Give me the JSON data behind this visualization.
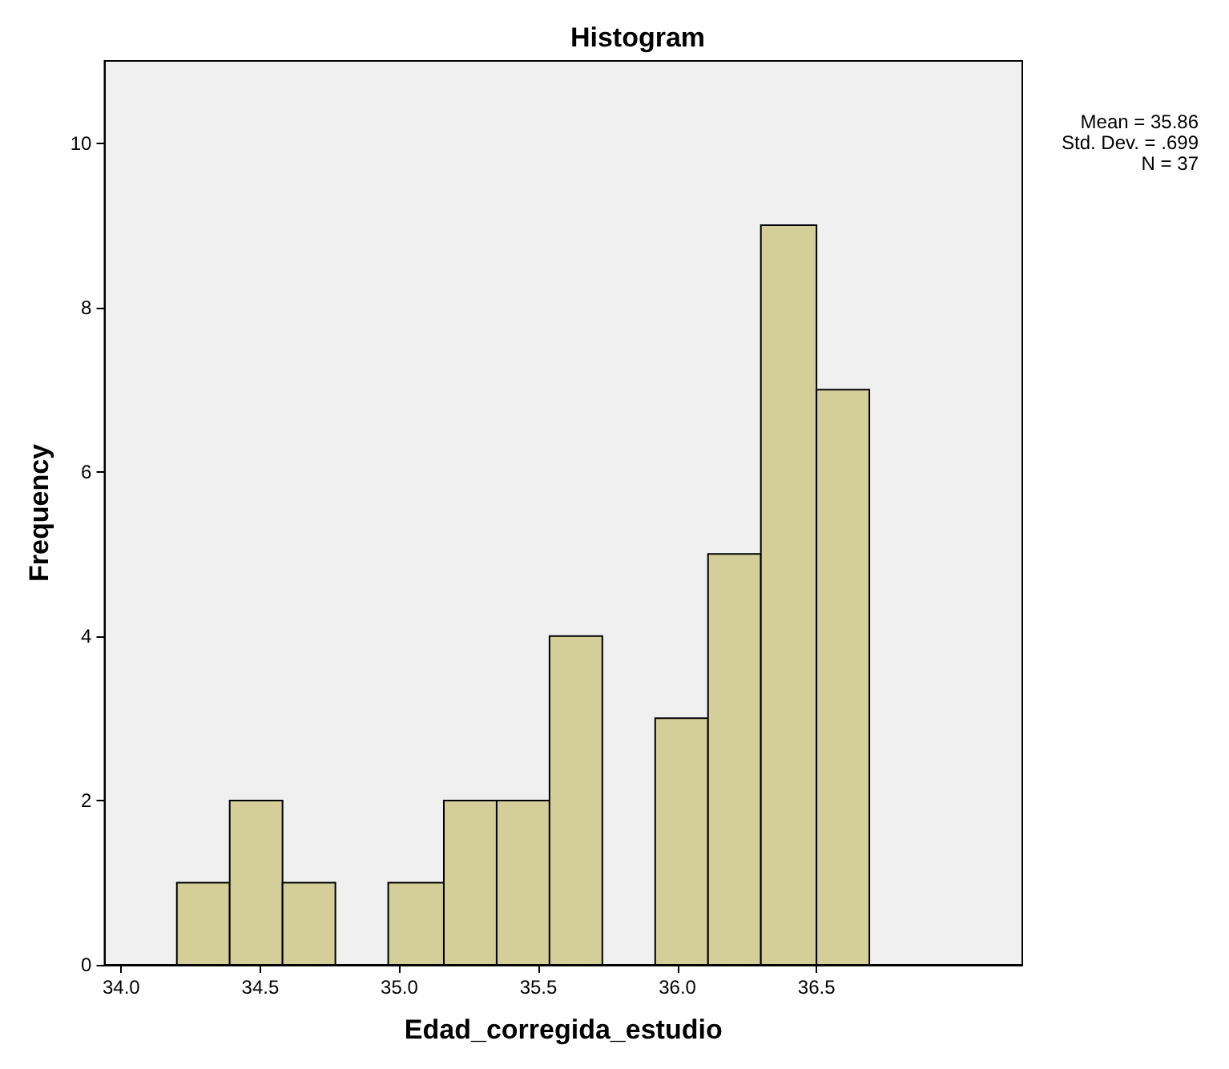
{
  "chart_data": {
    "type": "histogram",
    "title": "Histogram",
    "xlabel": "Edad_corregida_estudio",
    "ylabel": "Frequency",
    "bins": [
      34.2,
      34.39,
      34.58,
      34.77,
      34.96,
      35.16,
      35.35,
      35.54,
      35.73,
      35.92,
      36.11,
      36.3,
      36.5,
      36.69
    ],
    "values": [
      1,
      2,
      1,
      0,
      1,
      2,
      2,
      4,
      0,
      3,
      5,
      9,
      7
    ],
    "color": "#d4cf98",
    "xlim": [
      33.94,
      37.24
    ],
    "ylim": [
      0,
      11
    ],
    "xticks": [
      {
        "value": 34,
        "label": "34.0"
      },
      34.5,
      {
        "value": 35,
        "label": "35.0"
      },
      35.5,
      {
        "value": 36,
        "label": "36.0"
      },
      36.5
    ],
    "yticks": [
      0,
      2,
      4,
      6,
      8,
      10
    ],
    "grid": false,
    "annotations": [
      "Mean = 35.86",
      "Std. Dev. = .699",
      "N = 37"
    ]
  }
}
